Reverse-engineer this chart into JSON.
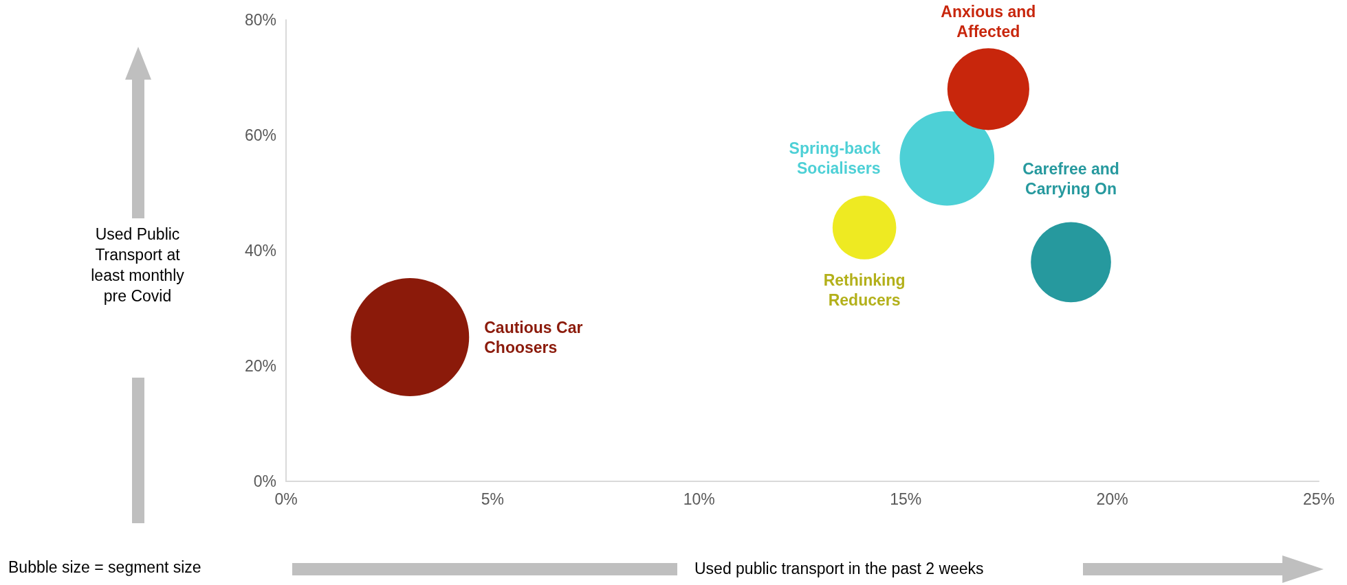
{
  "chart_data": {
    "type": "bubble",
    "xlabel": "Used public transport in the past 2 weeks",
    "ylabel": "Used Public Transport at least monthly pre Covid",
    "annotations": [
      "Bubble size = segment size"
    ],
    "xlim": [
      0,
      25
    ],
    "xticks": [
      {
        "value": 0,
        "label": "0%"
      },
      {
        "value": 5,
        "label": "5%"
      },
      {
        "value": 10,
        "label": "10%"
      },
      {
        "value": 15,
        "label": "15%"
      },
      {
        "value": 20,
        "label": "20%"
      },
      {
        "value": 25,
        "label": "25%"
      }
    ],
    "ylim": [
      0,
      80
    ],
    "yticks": [
      {
        "value": 0,
        "label": "0%"
      },
      {
        "value": 20,
        "label": "20%"
      },
      {
        "value": 40,
        "label": "40%"
      },
      {
        "value": 60,
        "label": "60%"
      },
      {
        "value": 80,
        "label": "80%"
      }
    ],
    "series": [
      {
        "name": "Cautious Car Choosers",
        "color": "#8b1a0a",
        "x": [
          3
        ],
        "values": [
          25
        ],
        "sizes": [
          1
        ]
      },
      {
        "name": "Rethinking Reducers",
        "color": "#eeea22",
        "x": [
          14
        ],
        "values": [
          44
        ],
        "sizes": [
          0.29
        ]
      },
      {
        "name": "Spring-back Socialisers",
        "color": "#4dd0d6",
        "x": [
          16
        ],
        "values": [
          56
        ],
        "sizes": [
          0.64
        ]
      },
      {
        "name": "Anxious and Affected",
        "color": "#c8260c",
        "x": [
          17
        ],
        "values": [
          68
        ],
        "sizes": [
          0.48
        ]
      },
      {
        "name": "Carefree and Carrying On",
        "color": "#26999e",
        "x": [
          19
        ],
        "values": [
          38
        ],
        "sizes": [
          0.46
        ]
      }
    ]
  }
}
